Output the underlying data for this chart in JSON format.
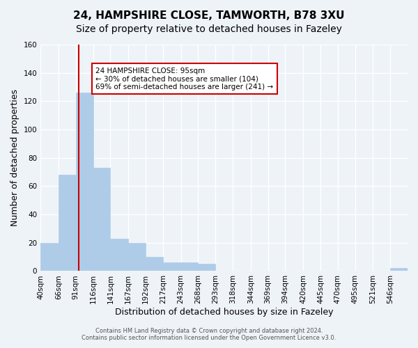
{
  "title_line1": "24, HAMPSHIRE CLOSE, TAMWORTH, B78 3XU",
  "title_line2": "Size of property relative to detached houses in Fazeley",
  "xlabel": "Distribution of detached houses by size in Fazeley",
  "ylabel": "Number of detached properties",
  "bar_edges": [
    40,
    66,
    91,
    116,
    141,
    167,
    192,
    217,
    243,
    268,
    293,
    318,
    344,
    369,
    394,
    420,
    445,
    470,
    495,
    521,
    546,
    571
  ],
  "bar_heights": [
    20,
    68,
    126,
    73,
    23,
    20,
    10,
    6,
    6,
    5,
    0,
    0,
    0,
    0,
    0,
    0,
    0,
    0,
    0,
    0,
    2
  ],
  "bar_color": "#aecce8",
  "bar_edgecolor": "#aecce8",
  "vline_x": 95,
  "vline_color": "#cc0000",
  "ylim": [
    0,
    160
  ],
  "yticks": [
    0,
    20,
    40,
    60,
    80,
    100,
    120,
    140,
    160
  ],
  "x_tick_labels": [
    "40sqm",
    "66sqm",
    "91sqm",
    "116sqm",
    "141sqm",
    "167sqm",
    "192sqm",
    "217sqm",
    "243sqm",
    "268sqm",
    "293sqm",
    "318sqm",
    "344sqm",
    "369sqm",
    "394sqm",
    "420sqm",
    "445sqm",
    "470sqm",
    "495sqm",
    "521sqm",
    "546sqm"
  ],
  "annotation_title": "24 HAMPSHIRE CLOSE: 95sqm",
  "annotation_line2": "← 30% of detached houses are smaller (104)",
  "annotation_line3": "69% of semi-detached houses are larger (241) →",
  "annotation_box_edgecolor": "#cc0000",
  "bg_color": "#eef3f8",
  "plot_bg_color": "#eef3f8",
  "footer_line1": "Contains HM Land Registry data © Crown copyright and database right 2024.",
  "footer_line2": "Contains public sector information licensed under the Open Government Licence v3.0.",
  "grid_color": "#ffffff",
  "title_fontsize": 11,
  "subtitle_fontsize": 10,
  "axis_label_fontsize": 9,
  "tick_fontsize": 7.5
}
